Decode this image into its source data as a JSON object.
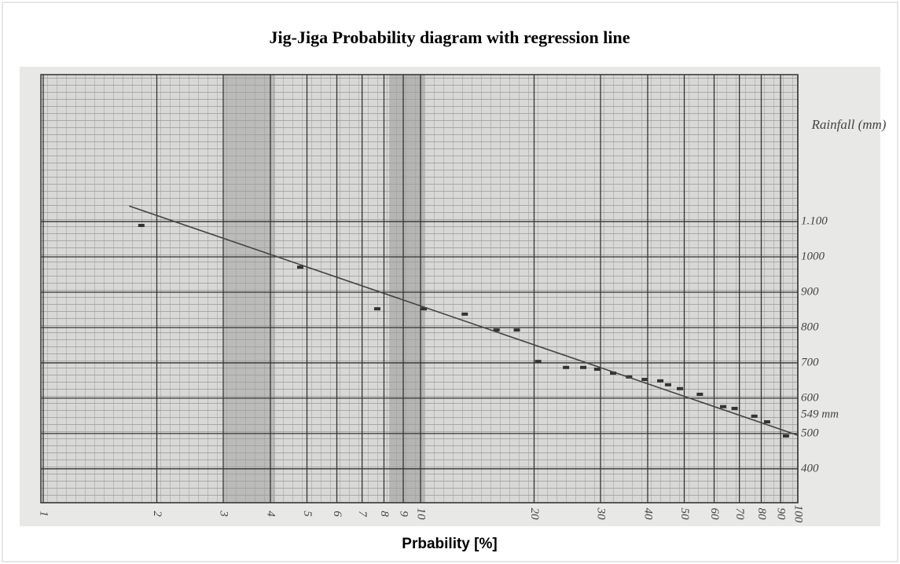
{
  "chart_data": {
    "type": "scatter",
    "title": "Jig-Jiga Probability diagram with regression line",
    "x_label": "Prbability [%]",
    "y_label": "Rainfall (mm)",
    "annotation": "549 mm",
    "x_log": true,
    "grid": true,
    "xlim": [
      1,
      100
    ],
    "ylim": [
      304,
      1516
    ],
    "xticks": [
      1,
      2,
      3,
      4,
      5,
      6,
      7,
      8,
      9,
      10,
      20,
      30,
      40,
      50,
      60,
      70,
      80,
      90,
      100
    ],
    "yticks": [
      400,
      500,
      600,
      700,
      800,
      900,
      1000,
      {
        "value": 1100,
        "label": "1.100"
      }
    ],
    "color": "#333333",
    "series": [
      {
        "x": [
          1.82,
          4.8,
          7.68,
          10.2,
          13.1,
          15.9,
          18.0,
          20.5,
          24.3,
          27.0,
          29.4,
          32.4,
          35.7,
          39.3,
          43.2,
          45.3,
          48.7,
          55.0,
          63.4,
          68.0,
          76.7,
          82.9,
          93.0
        ],
        "values": [
          1089,
          971,
          853,
          853,
          838,
          793,
          793,
          704,
          687,
          687,
          682,
          671,
          660,
          653,
          649,
          638,
          627,
          611,
          576,
          571,
          549,
          533,
          493
        ]
      }
    ],
    "regression": {
      "x": [
        1.69,
        100
      ],
      "values": [
        1144,
        495
      ],
      "color": "#444444"
    }
  }
}
